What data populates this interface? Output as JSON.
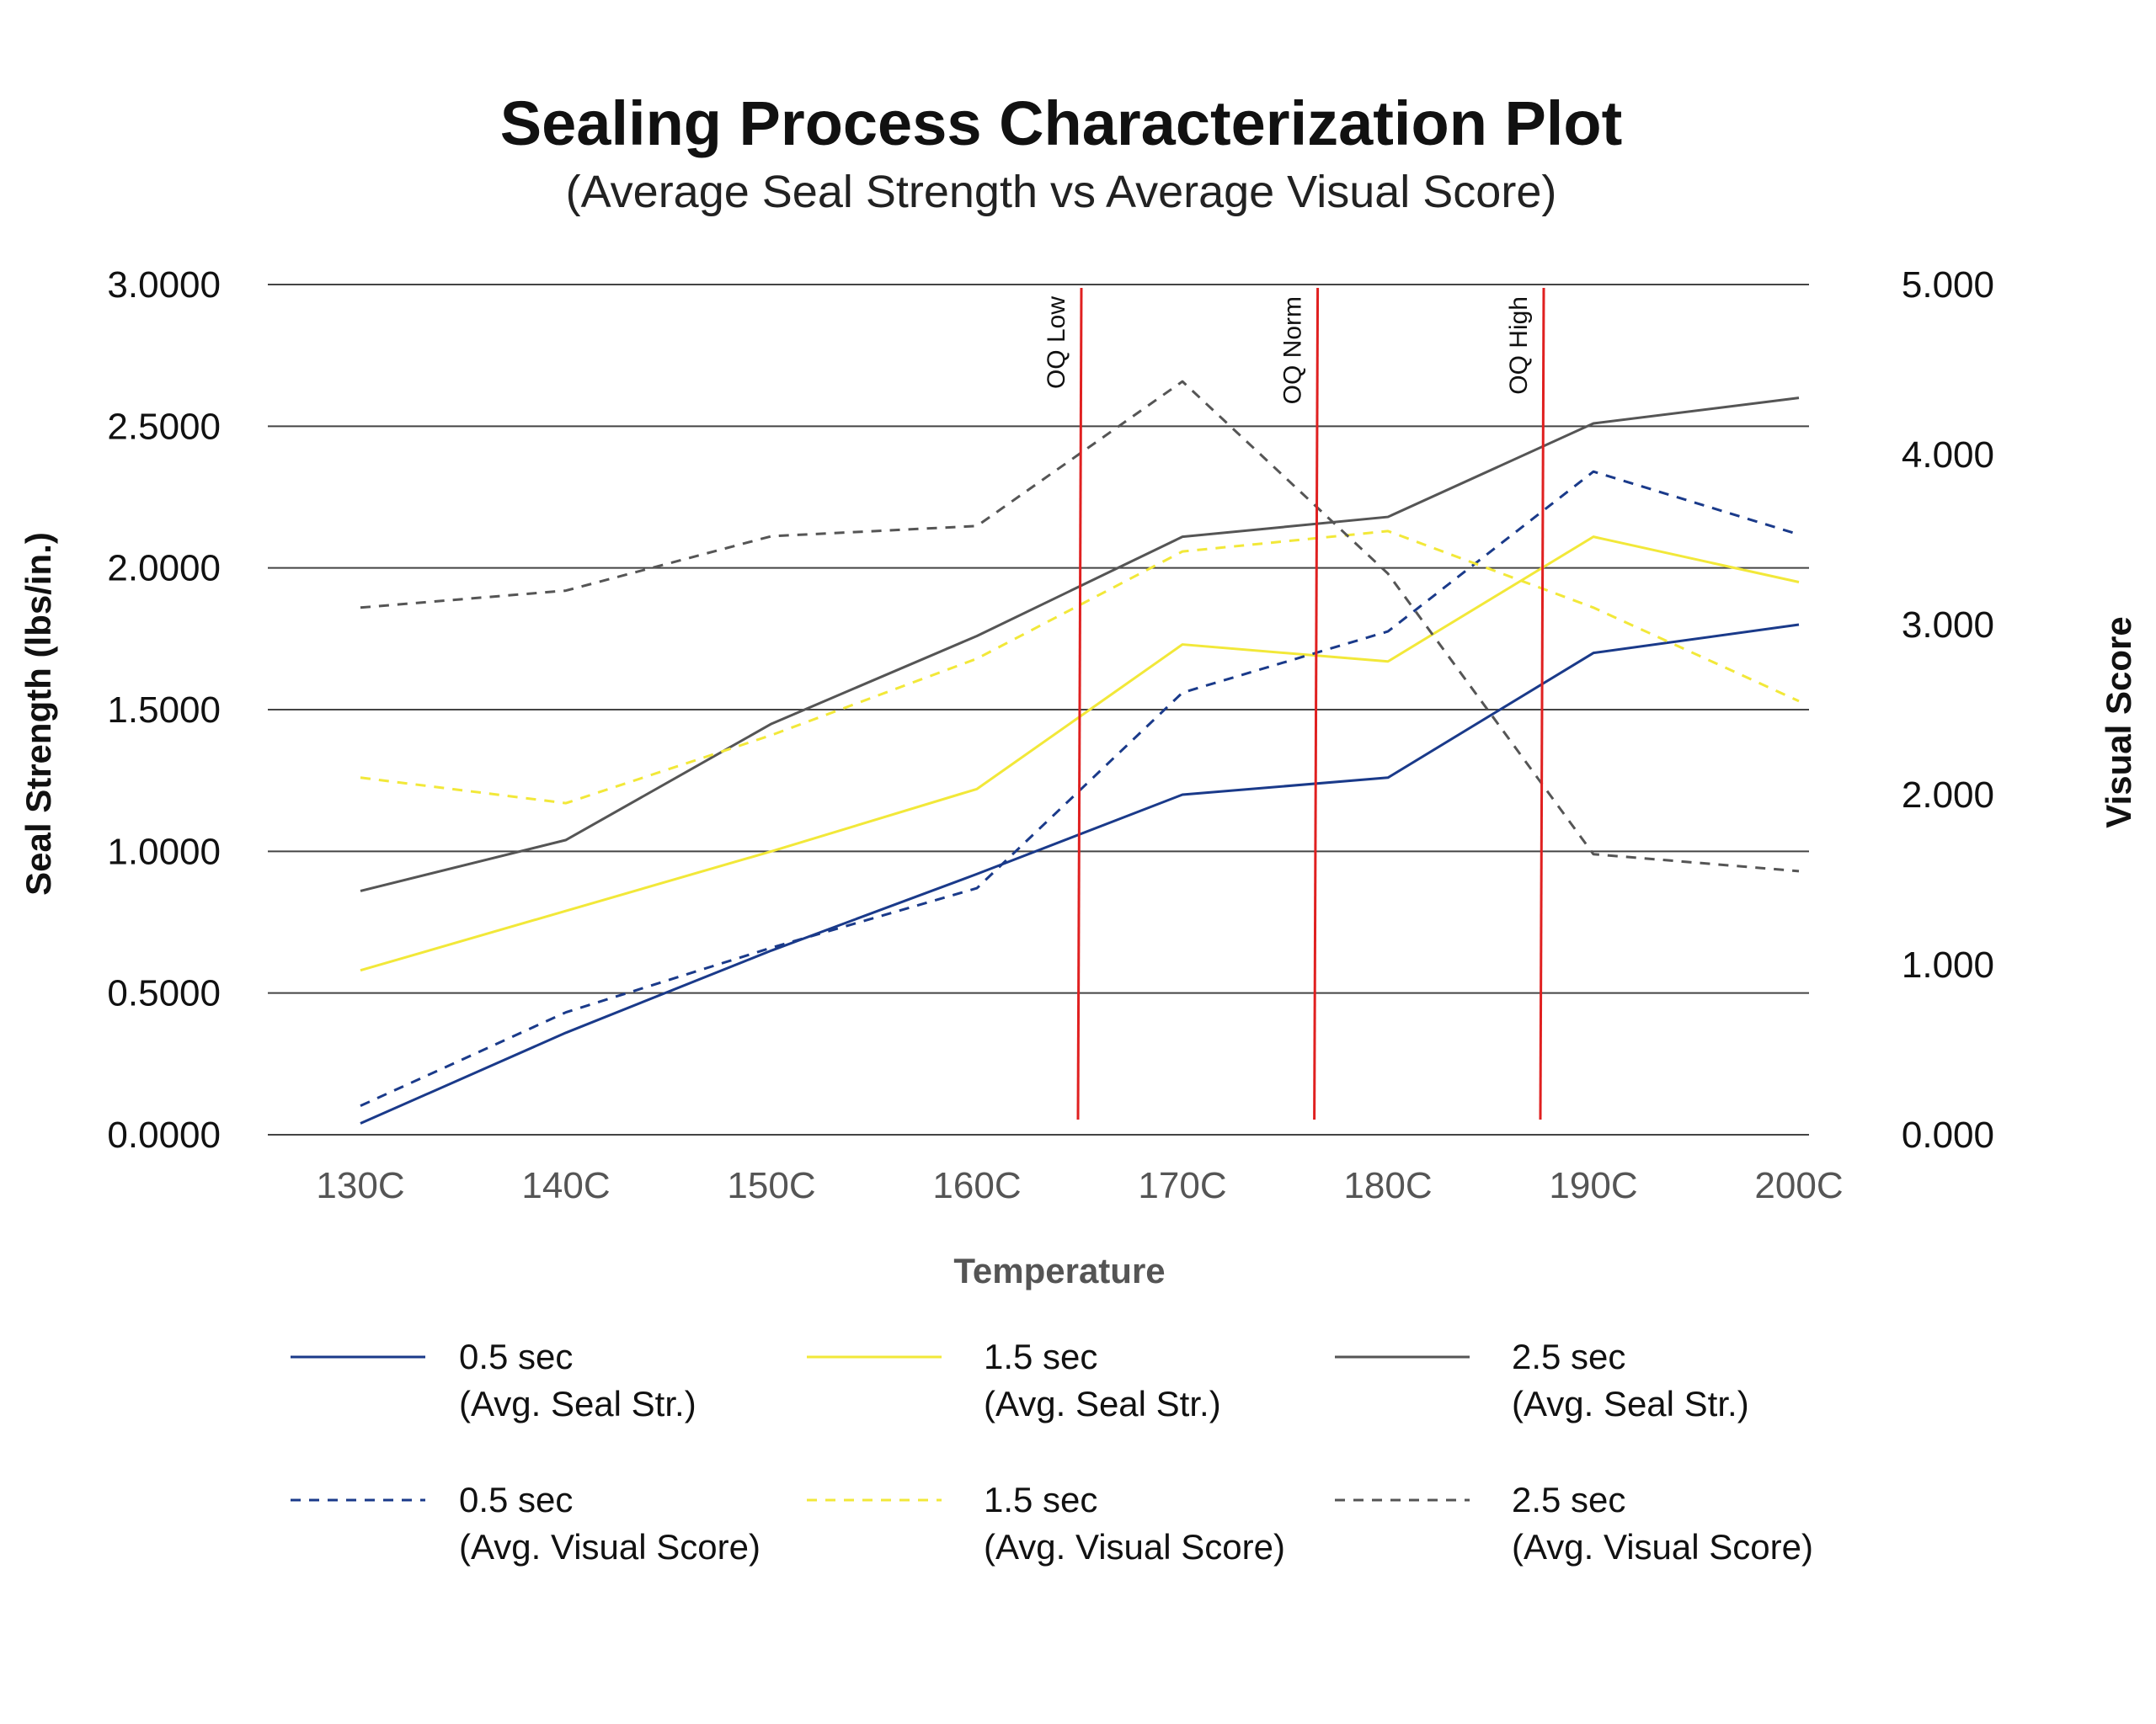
{
  "chart_data": {
    "type": "line",
    "title": "Sealing Process Characterization Plot",
    "subtitle": "(Average Seal Strength vs Average Visual Score)",
    "xlabel": "Temperature",
    "ylabel": "Seal Strength (lbs/in.)",
    "y2label": "Visual Score",
    "categories": [
      "130C",
      "140C",
      "150C",
      "160C",
      "170C",
      "180C",
      "190C",
      "200C"
    ],
    "ylim": [
      0,
      3
    ],
    "y_ticks": [
      "0.0000",
      "0.5000",
      "1.0000",
      "1.5000",
      "2.0000",
      "2.5000",
      "3.0000"
    ],
    "y2lim": [
      0,
      5
    ],
    "y2_ticks": [
      "0.000",
      "1.000",
      "2.000",
      "3.000",
      "4.000",
      "5.000"
    ],
    "grid": true,
    "legend_position": "bottom",
    "series": [
      {
        "name": "0.5 sec (Avg. Seal Str.)",
        "legend_line1": "0.5 sec",
        "legend_line2": "(Avg. Seal Str.)",
        "axis": "left",
        "style": "solid",
        "color": "#1a3a8a",
        "values": [
          0.04,
          0.36,
          0.65,
          0.92,
          1.2,
          1.26,
          1.7,
          1.8
        ]
      },
      {
        "name": "1.5 sec (Avg. Seal Str.)",
        "legend_line1": "1.5 sec",
        "legend_line2": "(Avg. Seal Str.)",
        "axis": "left",
        "style": "solid",
        "color": "#f2e839",
        "values": [
          0.58,
          0.79,
          1.0,
          1.22,
          1.73,
          1.67,
          2.11,
          1.95
        ]
      },
      {
        "name": "2.5 sec (Avg. Seal Str.)",
        "legend_line1": "2.5 sec",
        "legend_line2": "(Avg. Seal Str.)",
        "axis": "left",
        "style": "solid",
        "color": "#555555",
        "values": [
          0.86,
          1.04,
          1.45,
          1.76,
          2.11,
          2.18,
          2.51,
          2.6
        ]
      },
      {
        "name": "0.5 sec (Avg. Visual Score)",
        "legend_line1": "0.5 sec",
        "legend_line2": "(Avg. Visual Score)",
        "axis": "right",
        "style": "dashed",
        "color": "#1a3a8a",
        "values": [
          0.17,
          0.72,
          1.1,
          1.45,
          2.6,
          2.96,
          3.9,
          3.53
        ]
      },
      {
        "name": "1.5 sec (Avg. Visual Score)",
        "legend_line1": "1.5 sec",
        "legend_line2": "(Avg. Visual Score)",
        "axis": "right",
        "style": "dashed",
        "color": "#f2e839",
        "values": [
          2.1,
          1.95,
          2.35,
          2.8,
          3.43,
          3.55,
          3.1,
          2.55
        ]
      },
      {
        "name": "2.5 sec (Avg. Visual Score)",
        "legend_line1": "2.5 sec",
        "legend_line2": "(Avg. Visual Score)",
        "axis": "right",
        "style": "dashed",
        "color": "#555555",
        "values": [
          3.1,
          3.2,
          3.52,
          3.58,
          4.43,
          3.3,
          1.65,
          1.55
        ]
      }
    ],
    "reference_lines": [
      {
        "label": "OQ Low",
        "x": 165,
        "color": "#e02020"
      },
      {
        "label": "OQ Norm",
        "x": 176.5,
        "color": "#e02020"
      },
      {
        "label": "OQ High",
        "x": 187.5,
        "color": "#e02020"
      }
    ]
  }
}
